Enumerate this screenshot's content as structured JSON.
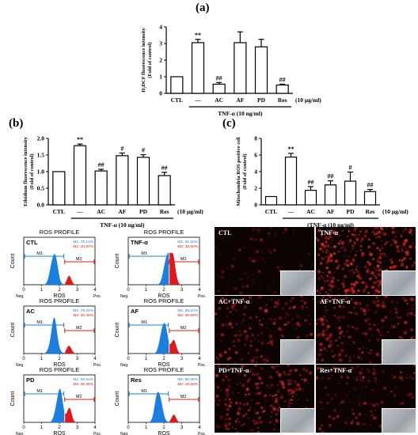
{
  "chart_data": [
    {
      "panel": "(a)",
      "type": "bar",
      "ylabel_line1": "H₂DCF fluorescence intensity",
      "ylabel_line2": "(Fold of control)",
      "ylim": [
        0,
        4
      ],
      "yticks": [
        "0",
        "1",
        "2",
        "3",
        "4"
      ],
      "categories": [
        "CTL",
        "—",
        "AC",
        "AF",
        "PD",
        "Res"
      ],
      "values": [
        1.0,
        3.05,
        0.55,
        3.05,
        2.8,
        0.5
      ],
      "errors": [
        0.0,
        0.2,
        0.1,
        0.65,
        0.45,
        0.05
      ],
      "sig": [
        "",
        "**",
        "##",
        "",
        "",
        "##"
      ],
      "conc": "(10 μg/ml)",
      "treatment": "TNF-α (10 ng/ml)"
    },
    {
      "panel": "(b)",
      "type": "bar",
      "ylabel_line1": "Ethidium fluorescence intensity",
      "ylabel_line2": "(Fold of control)",
      "ylim": [
        0,
        2.0
      ],
      "yticks": [
        "0.0",
        "0.5",
        "1.0",
        "1.5",
        "2.0"
      ],
      "categories": [
        "CTL",
        "—",
        "AC",
        "AF",
        "PD",
        "Res"
      ],
      "values": [
        1.0,
        1.78,
        1.02,
        1.48,
        1.43,
        0.88
      ],
      "errors": [
        0.0,
        0.05,
        0.05,
        0.08,
        0.08,
        0.1
      ],
      "sig": [
        "",
        "**",
        "##",
        "#",
        "#",
        "##"
      ],
      "conc": "(10 μg/ml)",
      "treatment": "TNF-α (10 ng/ml)"
    },
    {
      "panel": "(c)",
      "type": "bar",
      "ylabel_line1": "Mitochondria ROS positive cell",
      "ylabel_line2": "(Fold of control)",
      "ylim": [
        0,
        8
      ],
      "yticks": [
        "0",
        "2",
        "4",
        "6",
        "8"
      ],
      "categories": [
        "CTL",
        "—",
        "AC",
        "AF",
        "PD",
        "Res"
      ],
      "values": [
        1.0,
        5.75,
        1.75,
        2.4,
        2.85,
        1.6
      ],
      "errors": [
        0.0,
        0.45,
        0.45,
        0.5,
        1.1,
        0.25
      ],
      "sig": [
        "",
        "**",
        "##",
        "##",
        "#",
        "##"
      ],
      "conc": "(10 μg/ml)",
      "treatment": "(TNF-α (10 ng/ml)"
    }
  ],
  "flow": {
    "title": "ROS PROFILE",
    "xlabel": "ROS",
    "ylabel": "Count",
    "xticks": [
      "0",
      "1",
      "2",
      "3",
      "4"
    ],
    "neg": "Neg.",
    "pos": "Pos.",
    "m1": "M1",
    "m2": "M2",
    "colors": {
      "m1": "#1a7fe0",
      "m2": "#e01818"
    },
    "panels": [
      {
        "label": "CTL",
        "m1_stat": "M1: 79.13%",
        "m2_stat": "M2: 20.87%",
        "peak": 1.7,
        "red_ratio": 0.25
      },
      {
        "label": "TNF-α",
        "m1_stat": "M1: 61.10%",
        "m2_stat": "M2: 38.90%",
        "peak": 2.2,
        "red_ratio": 0.7
      },
      {
        "label": "AC",
        "m1_stat": "M1: 79.42%",
        "m2_stat": "M2: 20.40%",
        "peak": 1.7,
        "red_ratio": 0.25
      },
      {
        "label": "AF",
        "m1_stat": "M1: 69.91%",
        "m2_stat": "M2: 30.09%",
        "peak": 2.0,
        "red_ratio": 0.45
      },
      {
        "label": "PD",
        "m1_stat": "M1: 69.51%",
        "m2_stat": "M2: 30.49%",
        "peak": 2.0,
        "red_ratio": 0.45
      },
      {
        "label": "Res",
        "m1_stat": "M1: 80.39%",
        "m2_stat": "M2: 19.59%",
        "peak": 1.7,
        "red_ratio": 0.22
      }
    ]
  },
  "micrographs": [
    {
      "label": "CTL",
      "intensity": 0.12
    },
    {
      "label": "TNF-α",
      "intensity": 1.0
    },
    {
      "label": "AC+TNF-α",
      "intensity": 0.45
    },
    {
      "label": "AF+TNF-α",
      "intensity": 0.6
    },
    {
      "label": "PD+TNF-α",
      "intensity": 0.7
    },
    {
      "label": "Res+TNF-α",
      "intensity": 0.35
    }
  ]
}
